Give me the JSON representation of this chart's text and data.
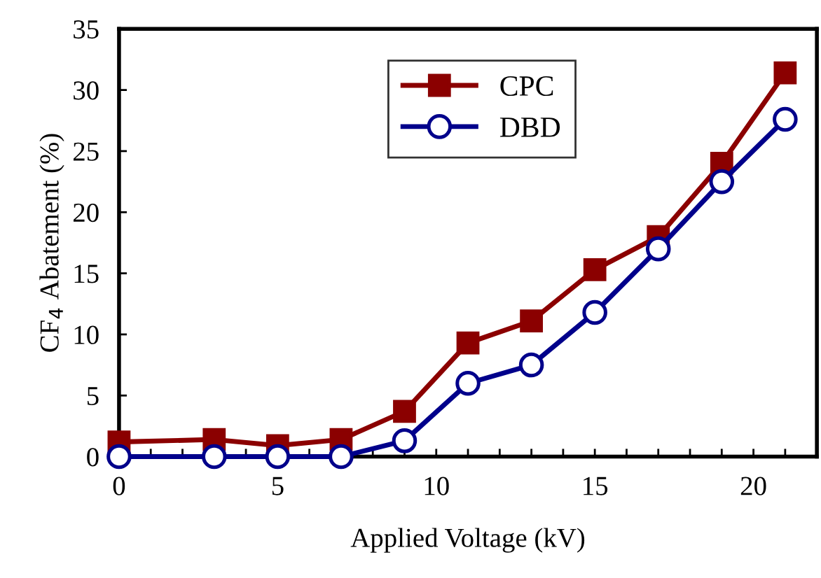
{
  "chart_data": {
    "type": "line",
    "xlabel": "Applied Voltage (kV)",
    "ylabel": "CF$_{4}$ Abatement (%)",
    "x": [
      0,
      3,
      5,
      7,
      9,
      11,
      13,
      15,
      17,
      19,
      21
    ],
    "series": [
      {
        "name": "CPC",
        "color": "#8b0000",
        "marker": "square",
        "values": [
          1.2,
          1.4,
          0.9,
          1.4,
          3.7,
          9.3,
          11.1,
          15.3,
          18.0,
          24.0,
          31.4
        ]
      },
      {
        "name": "DBD",
        "color": "#00008b",
        "marker": "circle",
        "values": [
          0,
          0,
          0,
          0,
          1.3,
          6.0,
          7.5,
          11.8,
          17.0,
          22.5,
          27.6
        ]
      }
    ],
    "xlim": [
      0,
      22
    ],
    "xticks": [
      0,
      {
        "value": 1,
        "label": null
      },
      {
        "value": 2,
        "label": null
      },
      {
        "value": 3,
        "label": null
      },
      {
        "value": 4,
        "label": null
      },
      5,
      {
        "value": 6,
        "label": null
      },
      {
        "value": 7,
        "label": null
      },
      {
        "value": 8,
        "label": null
      },
      {
        "value": 9,
        "label": null
      },
      10,
      {
        "value": 11,
        "label": null
      },
      {
        "value": 12,
        "label": null
      },
      {
        "value": 13,
        "label": null
      },
      {
        "value": 14,
        "label": null
      },
      15,
      {
        "value": 16,
        "label": null
      },
      {
        "value": 17,
        "label": null
      },
      {
        "value": 18,
        "label": null
      },
      {
        "value": 19,
        "label": null
      },
      20,
      {
        "value": 21,
        "label": null
      },
      {
        "value": 22,
        "label": null
      }
    ],
    "ylim": [
      0,
      35
    ],
    "yticks": [
      0,
      5,
      10,
      15,
      20,
      25,
      30,
      35
    ],
    "grid": false,
    "legend": "top center",
    "line_style": "solid"
  }
}
